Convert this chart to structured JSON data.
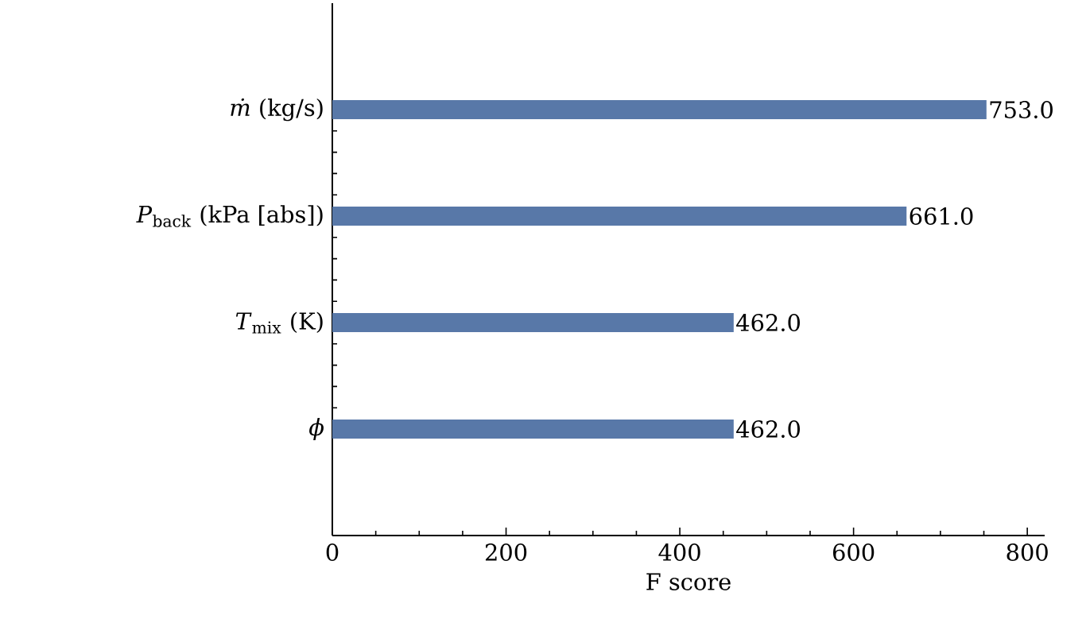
{
  "chart_data": {
    "type": "bar",
    "orientation": "horizontal",
    "xlabel": "F score",
    "categories": [
      "*ṁ* (kg/s)",
      "*P*$_{back}$ (kPa [abs])",
      "*T*$_{mix}$ (K)",
      "*ϕ*"
    ],
    "values": [
      753,
      661,
      462,
      462
    ],
    "value_labels": [
      "753.0",
      "661.0",
      "462.0",
      "462.0"
    ],
    "color": "#5878a8",
    "xlim": [
      0,
      820
    ],
    "xticks": [
      0,
      200,
      400,
      600,
      800
    ]
  }
}
